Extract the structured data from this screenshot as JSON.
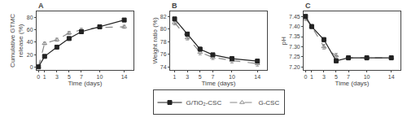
{
  "chart_data": [
    {
      "type": "line",
      "title": "A",
      "xlabel": "Time (days)",
      "ylabel": "Cumulative GTMC\nrelease (%)",
      "x": [
        0,
        1,
        3,
        5,
        7,
        10,
        14
      ],
      "xlim": [
        -0.3,
        15.5
      ],
      "ylim": [
        -5,
        90
      ],
      "xticks": [
        0,
        1,
        3,
        5,
        7,
        10,
        14
      ],
      "yticks": [
        0,
        20,
        40,
        60,
        80
      ],
      "grid": false,
      "legend": "bottom",
      "series": [
        {
          "name": "G/TiO₂-CSC",
          "color": "#222222",
          "marker": "square",
          "line_style": "solid",
          "values": [
            0,
            17,
            32,
            46,
            57,
            65,
            76
          ],
          "errors": [
            0.0,
            1.5,
            1.8,
            2.0,
            2.2,
            2.0,
            2.0
          ]
        },
        {
          "name": "G-CSC",
          "color": "#888888",
          "marker": "triangle-up-open",
          "line_style": "dashed",
          "values": [
            0,
            38,
            44,
            55,
            60,
            64,
            65
          ],
          "errors": [
            0.0,
            2.0,
            2.5,
            2.5,
            2.5,
            2.5,
            2.5
          ]
        }
      ]
    },
    {
      "type": "line",
      "title": "B",
      "xlabel": "Time (days)",
      "ylabel": "Weight ratio (%)",
      "x": [
        1,
        3,
        5,
        7,
        10,
        14
      ],
      "xlim": [
        0.3,
        15.5
      ],
      "ylim": [
        73.5,
        82.8
      ],
      "xticks": [
        1,
        3,
        5,
        7,
        10,
        14
      ],
      "yticks": [
        74,
        76,
        78,
        80,
        82
      ],
      "grid": false,
      "legend": "bottom",
      "series": [
        {
          "name": "G/TiO₂-CSC",
          "color": "#222222",
          "marker": "square",
          "line_style": "solid",
          "values": [
            81.6,
            79.2,
            76.8,
            75.9,
            75.3,
            74.9
          ],
          "errors": [
            0.25,
            0.25,
            0.3,
            0.25,
            0.3,
            0.3
          ]
        },
        {
          "name": "G-CSC",
          "color": "#888888",
          "marker": "triangle-up-open",
          "line_style": "dashed",
          "values": [
            81.0,
            78.6,
            76.3,
            75.5,
            75.0,
            74.5
          ],
          "errors": [
            0.35,
            0.35,
            0.4,
            0.35,
            0.4,
            0.4
          ]
        }
      ]
    },
    {
      "type": "line",
      "title": "C",
      "xlabel": "Time (days)",
      "ylabel": "pH",
      "x": [
        0,
        1,
        3,
        5,
        7,
        10,
        14
      ],
      "xlim": [
        -0.3,
        15.5
      ],
      "ylim": [
        7.185,
        7.475
      ],
      "xticks": [
        0,
        1,
        3,
        5,
        7,
        10,
        14
      ],
      "yticks": [
        {
          "value": 7.2,
          "label": "7.20"
        },
        7.25,
        {
          "value": 7.3,
          "label": "7.30"
        },
        7.35,
        {
          "value": 7.4,
          "label": "7.40"
        },
        7.45
      ],
      "grid": false,
      "legend": "bottom",
      "series": [
        {
          "name": "G/TiO₂-CSC",
          "color": "#222222",
          "marker": "square",
          "line_style": "solid",
          "values": [
            7.45,
            7.4,
            7.335,
            7.23,
            7.245,
            7.245,
            7.245
          ],
          "errors": [
            0.008,
            0.008,
            0.01,
            0.008,
            0.01,
            0.01,
            0.008
          ]
        },
        {
          "name": "G-CSC",
          "color": "#888888",
          "marker": "triangle-up-open",
          "line_style": "dashed",
          "values": [
            7.44,
            7.4,
            7.3,
            7.255,
            7.245,
            7.245,
            7.245
          ],
          "errors": [
            0.01,
            0.01,
            0.012,
            0.012,
            0.01,
            0.01,
            0.01
          ]
        }
      ]
    }
  ]
}
